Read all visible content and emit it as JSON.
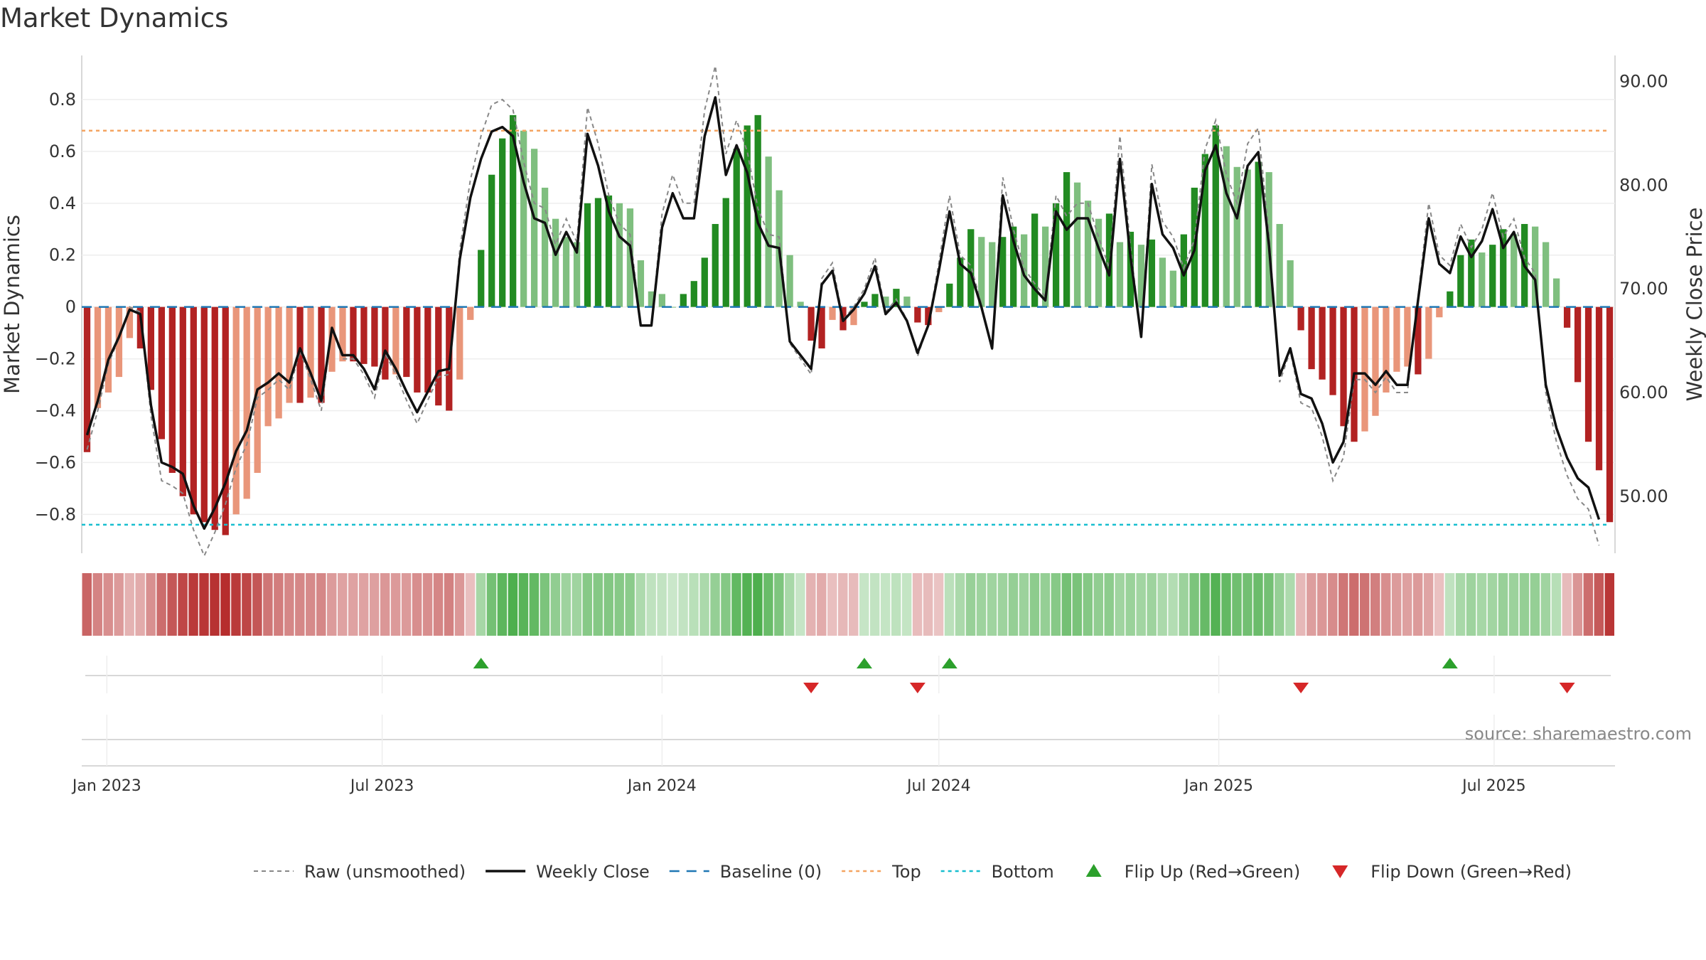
{
  "title": "Market Dynamics",
  "colors": {
    "strong_green": "#228B22",
    "light_green": "#7FBF7F",
    "strong_red": "#B22222",
    "light_red": "#E9967A",
    "raw": "#888888",
    "weekly": "#111111",
    "baseline": "#1F77B4",
    "top": "#F4A460",
    "bottom": "#17BECF",
    "flip_up": "#2CA02C",
    "flip_down": "#D62728"
  },
  "source": "source: sharemaestro.com",
  "chart_data": {
    "type": "bar",
    "start_date": "2022-12-19",
    "interval_days": 7,
    "ylabel": "Market Dynamics",
    "y2label": "Weekly Close Price",
    "ylim": [
      -0.95,
      0.97
    ],
    "y2lim": [
      44.5,
      92.5
    ],
    "yticks": [
      0.8,
      0.6,
      0.4,
      0.2,
      0,
      -0.2,
      -0.4,
      -0.6,
      -0.8
    ],
    "ytick_labels": [
      "0.8",
      "0.6",
      "0.4",
      "0.2",
      "0",
      "−0.2",
      "−0.4",
      "−0.6",
      "−0.8"
    ],
    "y2ticks": [
      90,
      80,
      70,
      60,
      50
    ],
    "y2tick_labels": [
      "90.00",
      "80.00",
      "70.00",
      "60.00",
      "50.00"
    ],
    "xticks": [
      {
        "label": "Jan 2023",
        "date": "2023-01-01"
      },
      {
        "label": "Jul 2023",
        "date": "2023-07-01"
      },
      {
        "label": "Jan 2024",
        "date": "2024-01-01"
      },
      {
        "label": "Jul 2024",
        "date": "2024-07-01"
      },
      {
        "label": "Jan 2025",
        "date": "2025-01-01"
      },
      {
        "label": "Jul 2025",
        "date": "2025-07-01"
      }
    ],
    "top_level": 0.68,
    "bottom_level": -0.84,
    "baseline_level": 0,
    "grid": true,
    "dynamics": [
      -0.56,
      -0.39,
      -0.33,
      -0.27,
      -0.12,
      -0.16,
      -0.32,
      -0.51,
      -0.64,
      -0.73,
      -0.8,
      -0.83,
      -0.86,
      -0.88,
      -0.8,
      -0.74,
      -0.64,
      -0.46,
      -0.43,
      -0.37,
      -0.37,
      -0.35,
      -0.37,
      -0.25,
      -0.21,
      -0.21,
      -0.22,
      -0.23,
      -0.28,
      -0.26,
      -0.27,
      -0.33,
      -0.33,
      -0.38,
      -0.4,
      -0.28,
      -0.05,
      0.22,
      0.51,
      0.65,
      0.74,
      0.68,
      0.61,
      0.46,
      0.34,
      0.27,
      0.25,
      0.4,
      0.42,
      0.43,
      0.4,
      0.38,
      0.18,
      0.06,
      0.05,
      0.0,
      0.05,
      0.1,
      0.19,
      0.32,
      0.42,
      0.61,
      0.7,
      0.74,
      0.58,
      0.45,
      0.2,
      0.02,
      -0.13,
      -0.16,
      -0.05,
      -0.09,
      -0.07,
      0.02,
      0.05,
      0.04,
      0.07,
      0.04,
      -0.06,
      -0.07,
      -0.02,
      0.09,
      0.19,
      0.3,
      0.27,
      0.25,
      0.27,
      0.31,
      0.28,
      0.36,
      0.31,
      0.4,
      0.52,
      0.48,
      0.41,
      0.34,
      0.36,
      0.25,
      0.29,
      0.24,
      0.26,
      0.19,
      0.14,
      0.28,
      0.46,
      0.59,
      0.7,
      0.62,
      0.54,
      0.53,
      0.56,
      0.52,
      0.32,
      0.18,
      -0.09,
      -0.24,
      -0.28,
      -0.34,
      -0.46,
      -0.52,
      -0.48,
      -0.42,
      -0.33,
      -0.25,
      -0.23,
      -0.26,
      -0.2,
      -0.04,
      0.06,
      0.2,
      0.26,
      0.21,
      0.24,
      0.3,
      0.28,
      0.32,
      0.31,
      0.25,
      0.11,
      -0.08,
      -0.29,
      -0.52,
      -0.63,
      -0.83
    ],
    "raw": [
      -0.55,
      -0.4,
      -0.22,
      -0.12,
      0.0,
      -0.02,
      -0.42,
      -0.67,
      -0.69,
      -0.72,
      -0.86,
      -0.96,
      -0.87,
      -0.76,
      -0.62,
      -0.53,
      -0.35,
      -0.32,
      -0.28,
      -0.32,
      -0.17,
      -0.28,
      -0.4,
      -0.08,
      -0.2,
      -0.2,
      -0.26,
      -0.35,
      -0.18,
      -0.26,
      -0.36,
      -0.45,
      -0.36,
      -0.27,
      -0.26,
      0.22,
      0.49,
      0.66,
      0.78,
      0.8,
      0.76,
      0.56,
      0.4,
      0.38,
      0.24,
      0.34,
      0.25,
      0.77,
      0.63,
      0.43,
      0.32,
      0.28,
      -0.07,
      -0.07,
      0.36,
      0.51,
      0.4,
      0.4,
      0.76,
      0.93,
      0.59,
      0.72,
      0.6,
      0.38,
      0.28,
      0.27,
      -0.14,
      -0.2,
      -0.26,
      0.11,
      0.17,
      -0.05,
      0.0,
      0.07,
      0.19,
      -0.02,
      0.03,
      -0.05,
      -0.19,
      -0.07,
      0.17,
      0.43,
      0.2,
      0.16,
      0.01,
      -0.17,
      0.5,
      0.3,
      0.15,
      0.09,
      0.04,
      0.43,
      0.35,
      0.4,
      0.4,
      0.27,
      0.15,
      0.66,
      0.23,
      -0.12,
      0.55,
      0.33,
      0.27,
      0.15,
      0.26,
      0.61,
      0.72,
      0.51,
      0.4,
      0.63,
      0.69,
      0.28,
      -0.29,
      -0.17,
      -0.37,
      -0.39,
      -0.5,
      -0.67,
      -0.58,
      -0.28,
      -0.28,
      -0.33,
      -0.27,
      -0.33,
      -0.33,
      0.04,
      0.4,
      0.2,
      0.16,
      0.32,
      0.23,
      0.3,
      0.44,
      0.27,
      0.34,
      0.19,
      0.13,
      -0.33,
      -0.52,
      -0.65,
      -0.74,
      -0.78,
      -0.92
    ]
  },
  "legend": [
    {
      "key": "raw",
      "label": "Raw (unsmoothed)"
    },
    {
      "key": "weekly",
      "label": "Weekly Close"
    },
    {
      "key": "baseline",
      "label": "Baseline (0)"
    },
    {
      "key": "top",
      "label": "Top"
    },
    {
      "key": "bottom",
      "label": "Bottom"
    },
    {
      "key": "flip_up",
      "label": "Flip Up (Red→Green)"
    },
    {
      "key": "flip_down",
      "label": "Flip Down (Green→Red)"
    }
  ]
}
